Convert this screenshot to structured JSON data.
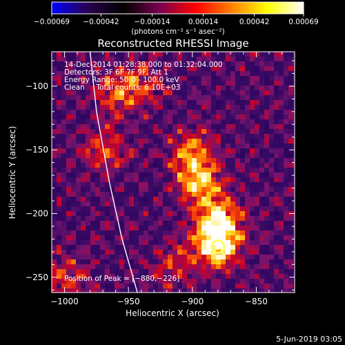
{
  "chart_data": {
    "type": "heatmap",
    "title": "Reconstructed RHESSI Image",
    "xlabel": "Heliocentric X (arcsec)",
    "ylabel": "Heliocentric Y (arcsec)",
    "xlim": [
      -1010,
      -820
    ],
    "ylim": [
      -262,
      -73
    ],
    "x_ticks": [
      -1000,
      -950,
      -900,
      -850
    ],
    "x_tick_labels": [
      "−1000",
      "−950",
      "−900",
      "−850"
    ],
    "y_ticks": [
      -100,
      -150,
      -200,
      -250
    ],
    "y_tick_labels": [
      "−100",
      "−150",
      "−200",
      "−250"
    ],
    "colorbar": {
      "min": -0.00069,
      "max": 0.00069,
      "ticks": [
        -0.00069,
        -0.00042,
        -0.00014,
        0.00014,
        0.00042,
        0.00069
      ],
      "tick_labels": [
        "−0.00069",
        "−0.00042",
        "−0.00014",
        "0.00014",
        "0.00042",
        "0.00069"
      ],
      "unit_label": "(photons cm⁻² s⁻¹ asec⁻²)",
      "colors": [
        "#0000ff",
        "#2a0050",
        "#000000",
        "#7a0050",
        "#ff0000",
        "#ff8000",
        "#ffff00",
        "#ffffff"
      ]
    },
    "annotations": [
      "14-Dec-2014 01:28:38.000 to 01:32:04.000",
      "Detectors: 3F 6F 7F 9F, Att 1",
      "Energy Range: 50.0 - 100.0 keV",
      "Clean     Total counts: 6.10E+03"
    ],
    "peak_label": "Position of Peak = [−880,−226]",
    "peak": [
      -880,
      -226
    ],
    "sources": [
      {
        "x": -895,
        "y": -175,
        "intensity": 0.00055
      },
      {
        "x": -880,
        "y": -205,
        "intensity": 0.0006
      },
      {
        "x": -880,
        "y": -226,
        "intensity": 0.00069
      },
      {
        "x": -900,
        "y": -150,
        "intensity": 0.0004
      },
      {
        "x": -970,
        "y": -150,
        "intensity": 0.00035
      },
      {
        "x": -960,
        "y": -105,
        "intensity": 0.0003
      },
      {
        "x": -940,
        "y": -100,
        "intensity": 0.00028
      },
      {
        "x": -1000,
        "y": -250,
        "intensity": 0.0003
      },
      {
        "x": -915,
        "y": -240,
        "intensity": 0.00025
      }
    ],
    "limb": [
      [
        -980,
        -73
      ],
      [
        -975,
        -120
      ],
      [
        -965,
        -175
      ],
      [
        -955,
        -220
      ],
      [
        -943,
        -262
      ]
    ]
  },
  "footer": {
    "date": "5-Jun-2019 03:05"
  }
}
